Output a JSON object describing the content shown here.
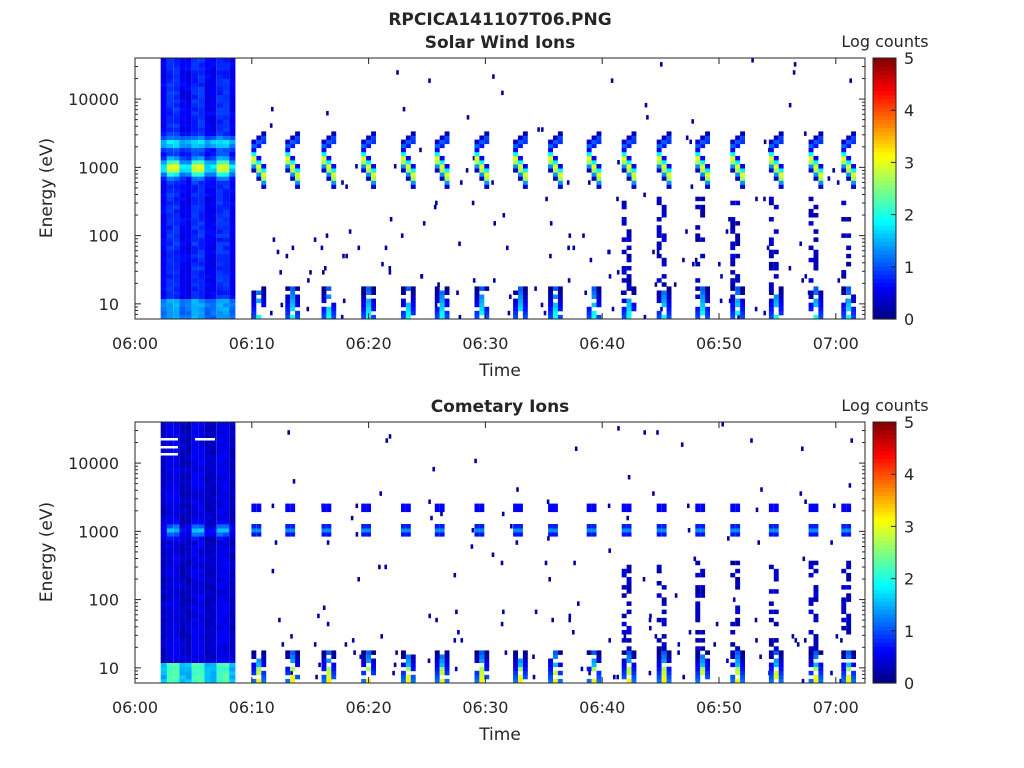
{
  "figure": {
    "title": "RPCICA141107T06.PNG"
  },
  "chart_data": [
    {
      "type": "heatmap",
      "title": "Solar Wind Ions",
      "xlabel": "Time",
      "ylabel": "Energy (eV)",
      "x_ticks": [
        "06:00",
        "06:10",
        "06:20",
        "06:30",
        "06:40",
        "06:50",
        "07:00"
      ],
      "y_ticks": [
        "10",
        "100",
        "1000",
        "10000"
      ],
      "yscale": "log",
      "ylim": [
        6,
        40000
      ],
      "xlim_minutes": [
        0,
        62.5
      ],
      "colorbar": {
        "label": "Log counts",
        "ticks": [
          "0",
          "1",
          "2",
          "3",
          "4",
          "5"
        ],
        "range": [
          0,
          5
        ],
        "colormap": "jet"
      },
      "data_start_minute": 2.2,
      "dense_block_until_minute": 8.6,
      "sweep_times_minutes": [
        10.6,
        13.5,
        16.6,
        20.0,
        23.4,
        26.3,
        29.7,
        33.0,
        36.0,
        39.3,
        42.3,
        45.3,
        48.6,
        51.6,
        54.9,
        58.3,
        61.1
      ],
      "peak_energy_eV": 1000,
      "peak_log_counts": 3.1,
      "secondary_energy_eV": 2300
    },
    {
      "type": "heatmap",
      "title": "Cometary Ions",
      "xlabel": "Time",
      "ylabel": "Energy (eV)",
      "x_ticks": [
        "06:00",
        "06:10",
        "06:20",
        "06:30",
        "06:40",
        "06:50",
        "07:00"
      ],
      "y_ticks": [
        "10",
        "100",
        "1000",
        "10000"
      ],
      "yscale": "log",
      "ylim": [
        6,
        40000
      ],
      "xlim_minutes": [
        0,
        62.5
      ],
      "colorbar": {
        "label": "Log counts",
        "ticks": [
          "0",
          "1",
          "2",
          "3",
          "4",
          "5"
        ],
        "range": [
          0,
          5
        ],
        "colormap": "jet"
      },
      "data_start_minute": 2.2,
      "dense_block_until_minute": 8.6,
      "sweep_times_minutes": [
        10.6,
        13.5,
        16.6,
        20.0,
        23.4,
        26.3,
        29.7,
        33.0,
        36.0,
        39.3,
        42.3,
        45.3,
        48.6,
        51.6,
        54.9,
        58.3,
        61.1
      ],
      "peak_energy_eV": 1050,
      "peak_log_counts": 1.3,
      "low_energy_peak_log_counts": 2.6
    }
  ]
}
